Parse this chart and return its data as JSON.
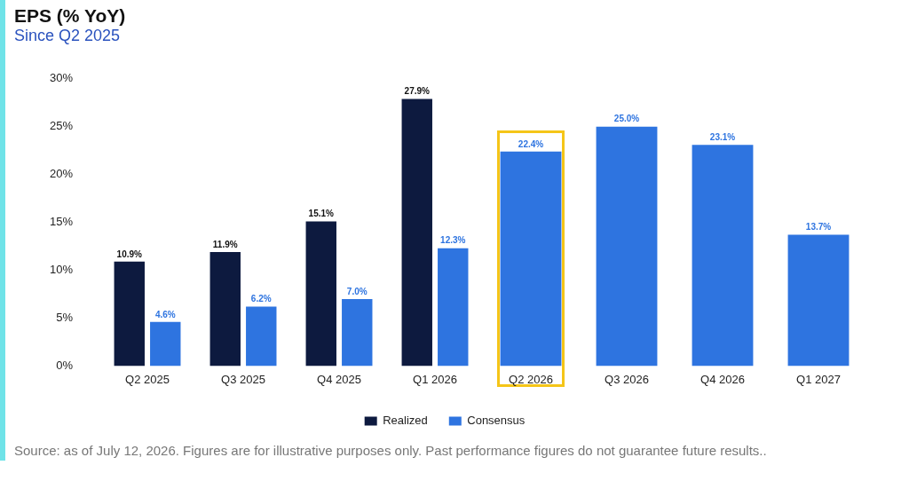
{
  "chart_data": {
    "type": "bar",
    "title": "EPS (% YoY)",
    "subtitle": "Since Q2 2025",
    "categories": [
      "Q2 2025",
      "Q3 2025",
      "Q4 2025",
      "Q1 2026",
      "Q2 2026",
      "Q3 2026",
      "Q4 2026",
      "Q1 2027"
    ],
    "series": [
      {
        "name": "Realized",
        "color": "#0d1a3f",
        "values": [
          10.9,
          11.9,
          15.1,
          27.9,
          null,
          null,
          null,
          null
        ],
        "value_labels": [
          "10.9%",
          "11.9%",
          "15.1%",
          "27.9%",
          null,
          null,
          null,
          null
        ]
      },
      {
        "name": "Consensus",
        "color": "#2e74e0",
        "values": [
          4.6,
          6.2,
          7.0,
          12.3,
          22.4,
          25.0,
          23.1,
          13.7
        ],
        "value_labels": [
          "4.6%",
          "6.2%",
          "7.0%",
          "12.3%",
          "22.4%",
          "25.0%",
          "23.1%",
          "13.7%"
        ]
      }
    ],
    "ylim": [
      0,
      30
    ],
    "yticks": [
      {
        "value": 0,
        "label": "0%"
      },
      {
        "value": 5,
        "label": "5%"
      },
      {
        "value": 10,
        "label": "10%"
      },
      {
        "value": 15,
        "label": "15%"
      },
      {
        "value": 20,
        "label": "20%"
      },
      {
        "value": 25,
        "label": "25%"
      },
      {
        "value": 30,
        "label": "30%"
      }
    ],
    "grid": false,
    "legend": "bottom",
    "annotations": [
      "Source: as of July 12, 2026. Figures are for illustrative purposes only. Past performance figures do not guarantee future results.."
    ]
  }
}
